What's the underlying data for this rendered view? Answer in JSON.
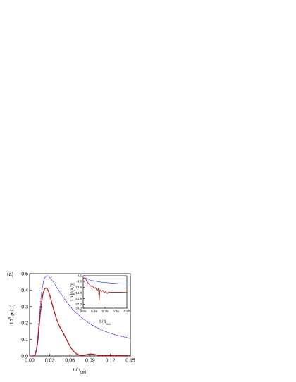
{
  "figure": {
    "panel_label": "(a)"
  },
  "chart_data": [
    {
      "type": "line",
      "xlabel": "t / τ",
      "xlabel_sub": "OM",
      "ylabel": "10",
      "ylabel_sup": "3",
      "ylabel_rest": " ρ(x,t)",
      "xlim": [
        0.0,
        0.15
      ],
      "ylim": [
        0.0,
        0.5
      ],
      "xticks": [
        "0.00",
        "0.03",
        "0.06",
        "0.09",
        "0.12",
        "0.15"
      ],
      "yticks": [
        "0.0",
        "0.1",
        "0.2",
        "0.3",
        "0.4",
        "0.5"
      ],
      "grid": false,
      "series": [
        {
          "color": "#2b2bd6",
          "style": "dotted",
          "x": [
            0.0,
            0.005,
            0.008,
            0.01,
            0.012,
            0.014,
            0.016,
            0.018,
            0.02,
            0.022,
            0.024,
            0.026,
            0.028,
            0.03,
            0.035,
            0.04,
            0.045,
            0.05,
            0.06,
            0.07,
            0.08,
            0.09,
            0.1,
            0.11,
            0.12,
            0.13,
            0.14,
            0.15
          ],
          "y": [
            0.0,
            0.0,
            0.01,
            0.04,
            0.11,
            0.21,
            0.31,
            0.39,
            0.44,
            0.47,
            0.483,
            0.488,
            0.485,
            0.478,
            0.452,
            0.42,
            0.388,
            0.357,
            0.303,
            0.259,
            0.224,
            0.195,
            0.172,
            0.153,
            0.138,
            0.126,
            0.116,
            0.108
          ]
        },
        {
          "color": "#000000",
          "style": "solid",
          "x": [
            0.0,
            0.005,
            0.008,
            0.01,
            0.012,
            0.014,
            0.016,
            0.018,
            0.02,
            0.022,
            0.024,
            0.026,
            0.028,
            0.03,
            0.033,
            0.036,
            0.04,
            0.045,
            0.05,
            0.055,
            0.06,
            0.065,
            0.07,
            0.075,
            0.08,
            0.085,
            0.09,
            0.095,
            0.1,
            0.105,
            0.11,
            0.12,
            0.13,
            0.14,
            0.15
          ],
          "y": [
            0.0,
            0.0,
            0.005,
            0.03,
            0.08,
            0.17,
            0.26,
            0.33,
            0.38,
            0.405,
            0.413,
            0.41,
            0.395,
            0.37,
            0.325,
            0.28,
            0.225,
            0.175,
            0.14,
            0.1,
            0.06,
            0.03,
            0.012,
            0.005,
            0.004,
            0.008,
            0.012,
            0.01,
            0.006,
            0.004,
            0.005,
            0.004,
            0.003,
            0.002,
            0.001
          ]
        },
        {
          "color": "#d11c1c",
          "style": "dashed",
          "x": [
            0.0,
            0.005,
            0.008,
            0.01,
            0.012,
            0.014,
            0.016,
            0.018,
            0.02,
            0.022,
            0.024,
            0.026,
            0.028,
            0.03,
            0.033,
            0.036,
            0.04,
            0.045,
            0.05,
            0.055,
            0.06,
            0.065,
            0.07,
            0.075,
            0.08,
            0.085,
            0.09,
            0.095,
            0.1,
            0.105,
            0.11,
            0.12,
            0.13,
            0.14,
            0.15
          ],
          "y": [
            0.0,
            0.0,
            0.005,
            0.03,
            0.08,
            0.17,
            0.26,
            0.33,
            0.38,
            0.405,
            0.413,
            0.41,
            0.395,
            0.37,
            0.325,
            0.28,
            0.225,
            0.175,
            0.14,
            0.1,
            0.06,
            0.03,
            0.012,
            0.005,
            0.004,
            0.008,
            0.012,
            0.01,
            0.006,
            0.004,
            0.005,
            0.004,
            0.003,
            0.002,
            0.001
          ]
        }
      ]
    },
    {
      "type": "line",
      "inset": true,
      "xlabel": "t / τ",
      "xlabel_sub": "OM",
      "ylabel": "Ln [ρ(x,t)]",
      "xlim": [
        0.0,
        0.6
      ],
      "ylim": [
        -30,
        -4.5
      ],
      "xticks": [
        "0.00",
        "0.15",
        "0.30",
        "0.45",
        "0.60"
      ],
      "yticks": [
        "-4.5",
        "-9.0",
        "-13.5",
        "-18.0",
        "-22.5",
        "-27.0",
        "-30.0"
      ],
      "ytick_values": [
        -4.5,
        -9.0,
        -13.5,
        -18.0,
        -22.5,
        -27.0,
        -30.0
      ],
      "grid": false,
      "series": [
        {
          "color": "#2b2bd6",
          "style": "solid",
          "x": [
            0.0,
            0.01,
            0.02,
            0.03,
            0.04,
            0.06,
            0.08,
            0.1,
            0.15,
            0.2,
            0.25,
            0.3,
            0.35,
            0.4,
            0.45,
            0.5,
            0.55,
            0.6
          ],
          "y": [
            -7.5,
            -6.5,
            -6.0,
            -6.1,
            -6.4,
            -7.0,
            -7.5,
            -7.9,
            -8.6,
            -9.1,
            -9.5,
            -9.8,
            -10.1,
            -10.3,
            -10.5,
            -10.7,
            -10.8,
            -11.0
          ]
        },
        {
          "color": "#000000",
          "style": "solid",
          "x": [
            0.0,
            0.01,
            0.02,
            0.03,
            0.05,
            0.07,
            0.09,
            0.11,
            0.13,
            0.15,
            0.17,
            0.19,
            0.21,
            0.22,
            0.23,
            0.25,
            0.27,
            0.29,
            0.31,
            0.33,
            0.35,
            0.37,
            0.4,
            0.45,
            0.5,
            0.55,
            0.6
          ],
          "y": [
            -7.5,
            -6.5,
            -6.2,
            -6.5,
            -8.5,
            -10.5,
            -11.5,
            -13.0,
            -12.5,
            -14.5,
            -13.8,
            -16.5,
            -14.5,
            -24.0,
            -15.5,
            -17.0,
            -16.0,
            -18.0,
            -16.8,
            -18.5,
            -17.2,
            -17.6,
            -17.5,
            -17.5,
            -17.5,
            -17.6,
            -17.6
          ]
        },
        {
          "color": "#d11c1c",
          "style": "dashed",
          "x": [
            0.0,
            0.01,
            0.02,
            0.03,
            0.05,
            0.07,
            0.09,
            0.11,
            0.13,
            0.15,
            0.17,
            0.19,
            0.21,
            0.22,
            0.23,
            0.25,
            0.27,
            0.29,
            0.31,
            0.33,
            0.35,
            0.37,
            0.4,
            0.45,
            0.5,
            0.55,
            0.6
          ],
          "y": [
            -7.5,
            -6.5,
            -6.2,
            -6.5,
            -8.5,
            -10.5,
            -11.5,
            -13.0,
            -12.5,
            -14.5,
            -13.8,
            -16.5,
            -14.5,
            -24.0,
            -15.5,
            -17.0,
            -16.0,
            -18.0,
            -16.8,
            -18.5,
            -17.2,
            -17.6,
            -17.5,
            -17.5,
            -17.5,
            -17.6,
            -17.6
          ]
        }
      ]
    }
  ]
}
